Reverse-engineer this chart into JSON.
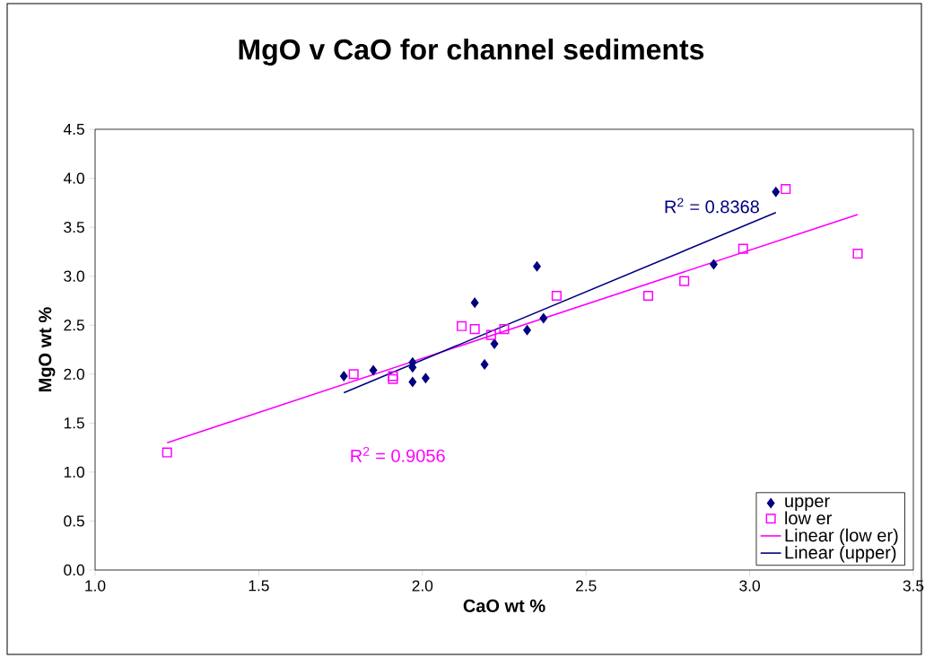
{
  "chart_data": {
    "type": "scatter",
    "title": "MgO v CaO for channel sediments",
    "xlabel": "CaO wt %",
    "ylabel": "MgO wt %",
    "xlim": [
      1.0,
      3.5
    ],
    "ylim": [
      0.0,
      4.5
    ],
    "xticks": [
      {
        "value": 1.0,
        "label": "1.0"
      },
      {
        "value": 1.5,
        "label": "1.5"
      },
      {
        "value": 2.0,
        "label": "2.0"
      },
      {
        "value": 2.5,
        "label": "2.5"
      },
      {
        "value": 3.0,
        "label": "3.0"
      },
      {
        "value": 3.5,
        "label": "3.5"
      }
    ],
    "yticks": [
      {
        "value": 0.0,
        "label": "0.0"
      },
      {
        "value": 0.5,
        "label": "0.5"
      },
      {
        "value": 1.0,
        "label": "1.0"
      },
      {
        "value": 1.5,
        "label": "1.5"
      },
      {
        "value": 2.0,
        "label": "2.0"
      },
      {
        "value": 2.5,
        "label": "2.5"
      },
      {
        "value": 3.0,
        "label": "3.0"
      },
      {
        "value": 3.5,
        "label": "3.5"
      },
      {
        "value": 4.0,
        "label": "4.0"
      },
      {
        "value": 4.5,
        "label": "4.5"
      }
    ],
    "grid": false,
    "legend": "bottom right",
    "series": [
      {
        "name": "upper",
        "marker": "diamond",
        "color": "#000080",
        "x": [
          1.76,
          1.85,
          1.97,
          1.97,
          1.97,
          2.01,
          2.16,
          2.19,
          2.22,
          2.32,
          2.35,
          2.37,
          2.89,
          3.08
        ],
        "values": [
          1.98,
          2.04,
          2.12,
          2.07,
          1.92,
          1.96,
          2.73,
          2.1,
          2.31,
          2.45,
          3.1,
          2.57,
          3.12,
          3.86
        ]
      },
      {
        "name": "low er",
        "marker": "square",
        "color": "#ff00ff",
        "x": [
          1.22,
          1.79,
          1.91,
          1.91,
          2.12,
          2.16,
          2.21,
          2.25,
          2.41,
          2.69,
          2.8,
          2.98,
          3.11,
          3.33
        ],
        "values": [
          1.2,
          2.0,
          1.98,
          1.95,
          2.49,
          2.46,
          2.4,
          2.46,
          2.8,
          2.8,
          2.95,
          3.28,
          3.89,
          3.23
        ]
      },
      {
        "name": "Linear (low er)",
        "type": "line",
        "marker": "none",
        "color": "#ff00ff",
        "x": [
          1.22,
          3.33
        ],
        "values": [
          1.3,
          3.63
        ]
      },
      {
        "name": "Linear (upper)",
        "type": "line",
        "marker": "none",
        "color": "#000080",
        "x": [
          1.76,
          3.08
        ],
        "values": [
          1.81,
          3.65
        ]
      }
    ],
    "annotations": [
      "R$^{2}$ = 0.9056",
      "R$^{2}$ = 0.8368"
    ]
  }
}
